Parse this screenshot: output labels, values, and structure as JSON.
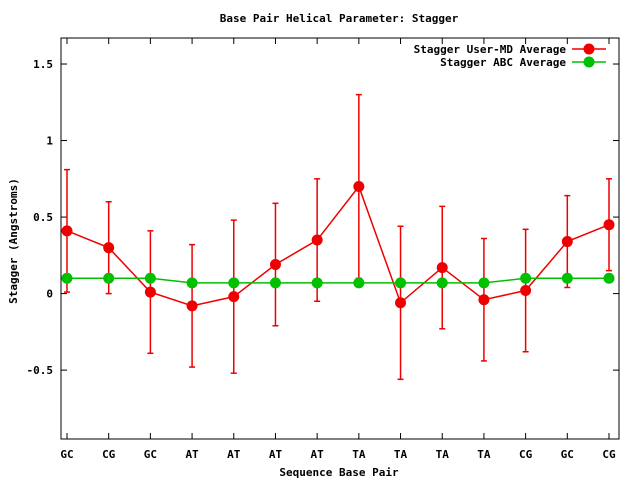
{
  "chart_data": {
    "type": "line",
    "title": "Base Pair Helical Parameter: Stagger",
    "xlabel": "Sequence Base Pair",
    "ylabel": "Stagger (Angstroms)",
    "ylim": [
      -0.95,
      1.67
    ],
    "yticks": [
      -0.5,
      0,
      0.5,
      1,
      1.5
    ],
    "ytick_labels": [
      "-0.5",
      "0",
      "0.5",
      "1",
      "1.5"
    ],
    "categories": [
      "GC",
      "CG",
      "GC",
      "AT",
      "AT",
      "AT",
      "AT",
      "TA",
      "TA",
      "TA",
      "TA",
      "CG",
      "GC",
      "CG"
    ],
    "grid": false,
    "legend_position": "top-right",
    "series": [
      {
        "name": "Stagger User-MD Average",
        "color": "#ee0000",
        "values": [
          0.41,
          0.3,
          0.01,
          -0.08,
          -0.02,
          0.19,
          0.35,
          0.7,
          -0.06,
          0.17,
          -0.04,
          0.02,
          0.34,
          0.45
        ],
        "error": [
          0.4,
          0.3,
          0.4,
          0.4,
          0.5,
          0.4,
          0.4,
          0.6,
          0.5,
          0.4,
          0.4,
          0.4,
          0.3,
          0.3
        ]
      },
      {
        "name": "Stagger ABC Average",
        "color": "#00c000",
        "values": [
          0.1,
          0.1,
          0.1,
          0.07,
          0.07,
          0.07,
          0.07,
          0.07,
          0.07,
          0.07,
          0.07,
          0.1,
          0.1,
          0.1
        ]
      }
    ]
  }
}
